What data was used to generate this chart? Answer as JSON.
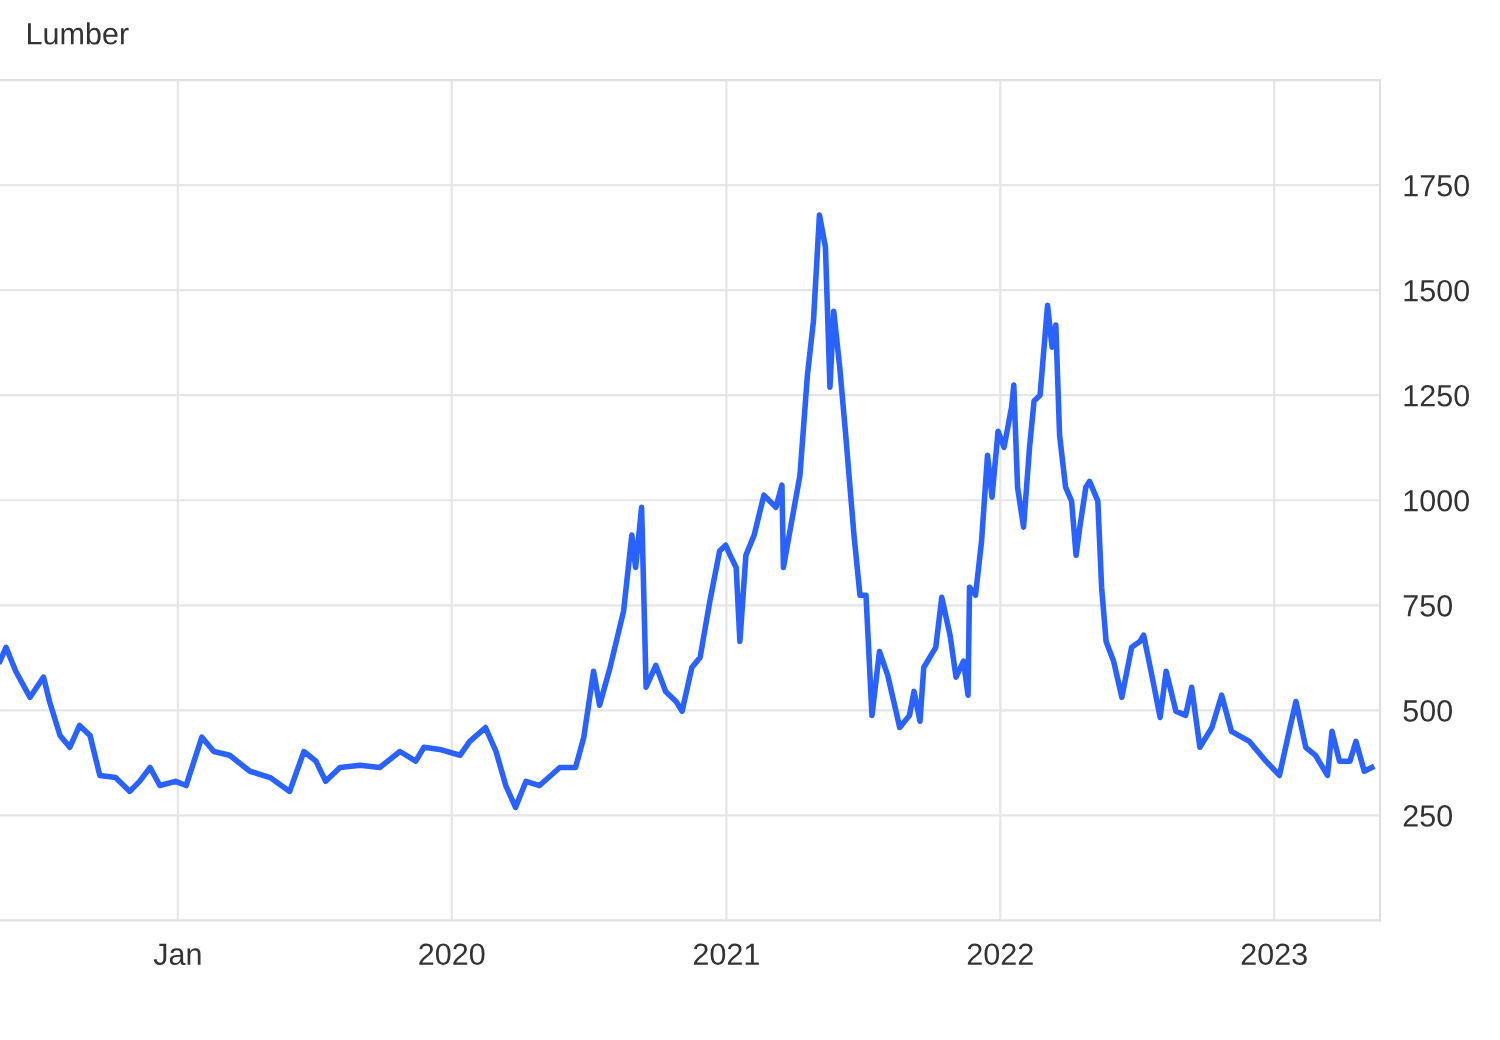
{
  "chart_data": {
    "type": "line",
    "title": "Lumber",
    "x": [
      "2018-05-09",
      "2018-05-17",
      "2018-05-30",
      "2018-06-18",
      "2018-07-06",
      "2018-07-14",
      "2018-07-28",
      "2018-08-10",
      "2018-08-23",
      "2018-09-06",
      "2018-09-19",
      "2018-10-10",
      "2018-10-29",
      "2018-11-11",
      "2018-11-25",
      "2018-12-08",
      "2018-12-29",
      "2019-01-12",
      "2019-02-02",
      "2019-02-18",
      "2019-03-11",
      "2019-04-07",
      "2019-05-04",
      "2019-05-30",
      "2019-06-18",
      "2019-07-04",
      "2019-07-17",
      "2019-08-05",
      "2019-09-01",
      "2019-09-27",
      "2019-10-24",
      "2019-11-14",
      "2019-11-25",
      "2019-12-16",
      "2020-01-12",
      "2020-01-25",
      "2020-02-15",
      "2020-02-29",
      "2020-03-13",
      "2020-03-26",
      "2020-04-09",
      "2020-04-27",
      "2020-05-24",
      "2020-06-14",
      "2020-06-25",
      "2020-07-08",
      "2020-07-16",
      "2020-07-30",
      "2020-08-17",
      "2020-08-28",
      "2020-09-02",
      "2020-09-10",
      "2020-09-16",
      "2020-09-29",
      "2020-10-12",
      "2020-10-26",
      "2020-11-03",
      "2020-11-16",
      "2020-11-27",
      "2020-12-10",
      "2020-12-23",
      "2020-12-31",
      "2021-01-06",
      "2021-01-14",
      "2021-01-19",
      "2021-01-27",
      "2021-02-07",
      "2021-02-20",
      "2021-03-08",
      "2021-03-16",
      "2021-03-18",
      "2021-03-29",
      "2021-04-09",
      "2021-04-19",
      "2021-04-27",
      "2021-05-05",
      "2021-05-13",
      "2021-05-19",
      "2021-05-24",
      "2021-06-01",
      "2021-06-09",
      "2021-06-20",
      "2021-06-28",
      "2021-07-06",
      "2021-07-14",
      "2021-07-24",
      "2021-08-04",
      "2021-08-12",
      "2021-08-20",
      "2021-09-02",
      "2021-09-08",
      "2021-09-16",
      "2021-09-21",
      "2021-10-07",
      "2021-10-15",
      "2021-10-26",
      "2021-11-03",
      "2021-11-13",
      "2021-11-19",
      "2021-11-21",
      "2021-11-29",
      "2021-12-07",
      "2021-12-15",
      "2021-12-21",
      "2021-12-29",
      "2022-01-06",
      "2022-01-16",
      "2022-01-19",
      "2022-01-24",
      "2022-02-01",
      "2022-02-09",
      "2022-02-15",
      "2022-02-23",
      "2022-03-05",
      "2022-03-11",
      "2022-03-16",
      "2022-03-21",
      "2022-03-29",
      "2022-04-06",
      "2022-04-12",
      "2022-04-17",
      "2022-04-25",
      "2022-04-30",
      "2022-05-11",
      "2022-05-16",
      "2022-05-22",
      "2022-06-01",
      "2022-06-12",
      "2022-06-25",
      "2022-07-06",
      "2022-07-11",
      "2022-07-22",
      "2022-08-02",
      "2022-08-10",
      "2022-08-23",
      "2022-09-05",
      "2022-09-13",
      "2022-09-24",
      "2022-10-10",
      "2022-10-23",
      "2022-11-05",
      "2022-11-29",
      "2022-12-21",
      "2023-01-08",
      "2023-01-22",
      "2023-01-30",
      "2023-02-12",
      "2023-02-25",
      "2023-03-13",
      "2023-03-19",
      "2023-03-29",
      "2023-04-12",
      "2023-04-20",
      "2023-05-01",
      "2023-05-11"
    ],
    "series": [
      {
        "color": "#2962ff",
        "values": [
          617,
          650,
          593,
          531,
          579,
          521,
          440,
          412,
          464,
          440,
          345,
          340,
          307,
          331,
          364,
          321,
          331,
          321,
          436,
          402,
          393,
          355,
          340,
          307,
          402,
          379,
          331,
          364,
          369,
          364,
          402,
          379,
          412,
          407,
          393,
          426,
          459,
          402,
          321,
          269,
          331,
          321,
          364,
          364,
          436,
          593,
          512,
          602,
          736,
          917,
          840,
          983,
          555,
          607,
          545,
          521,
          498,
          602,
          626,
          760,
          879,
          893,
          869,
          840,
          664,
          869,
          917,
          1012,
          983,
          1036,
          840,
          950,
          1059,
          1298,
          1426,
          1679,
          1602,
          1269,
          1450,
          1317,
          1155,
          917,
          774,
          774,
          488,
          640,
          583,
          521,
          459,
          488,
          545,
          474,
          602,
          650,
          769,
          679,
          579,
          617,
          536,
          793,
          774,
          902,
          1107,
          1007,
          1164,
          1126,
          1221,
          1274,
          1031,
          936,
          1126,
          1236,
          1250,
          1464,
          1364,
          1417,
          1155,
          1031,
          998,
          869,
          936,
          1031,
          1045,
          998,
          793,
          664,
          617,
          531,
          650,
          664,
          679,
          583,
          483,
          593,
          498,
          488,
          555,
          412,
          459,
          536,
          450,
          426,
          379,
          345,
          459,
          521,
          412,
          393,
          345,
          450,
          379,
          379,
          426,
          355,
          364
        ]
      }
    ],
    "xlim": [
      "2018-05-09",
      "2023-05-22"
    ],
    "xticks": [
      {
        "value": "2019-01-01",
        "label": "Jan"
      },
      {
        "value": "2020-01-01",
        "label": "2020"
      },
      {
        "value": "2021-01-01",
        "label": "2021"
      },
      {
        "value": "2022-01-01",
        "label": "2022"
      },
      {
        "value": "2023-01-01",
        "label": "2023"
      }
    ],
    "ylim": [
      0,
      2000
    ],
    "yticks": [
      250,
      500,
      750,
      1000,
      1250,
      1500,
      1750
    ],
    "grid": true,
    "marker": "none",
    "line_style": "solid"
  }
}
